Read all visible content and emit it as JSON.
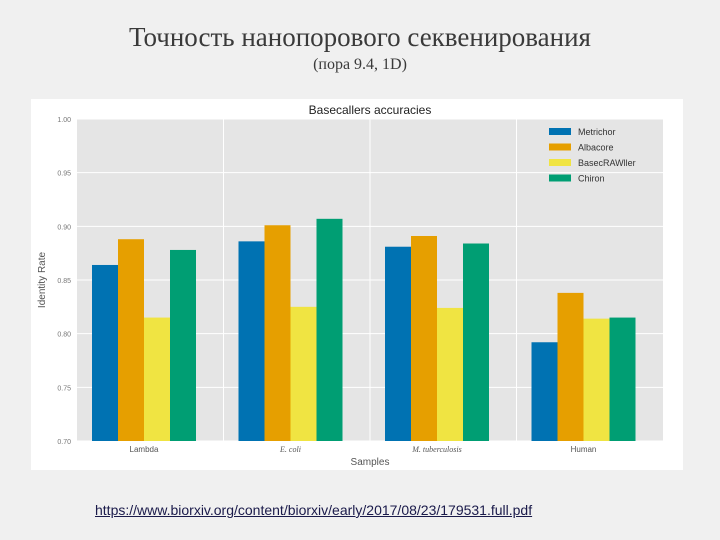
{
  "slide": {
    "title": "Точность нанопорового секвенирования",
    "subtitle": "(пора 9.4, 1D)",
    "source_link": "https://www.biorxiv.org/content/biorxiv/early/2017/08/23/179531.full.pdf"
  },
  "chart_data": {
    "type": "bar",
    "title": "Basecallers accuracies",
    "xlabel": "Samples",
    "ylabel": "Identity Rate",
    "categories": [
      "Lambda",
      "E. coli",
      "M. tuberculosis",
      "Human"
    ],
    "ylim": [
      0.7,
      1.0
    ],
    "yticks": [
      0.7,
      0.75,
      0.8,
      0.85,
      0.9,
      0.95,
      1.0
    ],
    "ytick_labels": [
      "0.70",
      "0.75",
      "0.80",
      "0.85",
      "0.90",
      "0.95",
      "1.00"
    ],
    "grid": true,
    "legend_position": "top-right",
    "series": [
      {
        "name": "Metrichor",
        "color": "#0072b2",
        "values": [
          0.864,
          0.886,
          0.881,
          0.792
        ]
      },
      {
        "name": "Albacore",
        "color": "#e69f00",
        "values": [
          0.888,
          0.901,
          0.891,
          0.838
        ]
      },
      {
        "name": "BasecRAWller",
        "color": "#f0e442",
        "values": [
          0.815,
          0.825,
          0.824,
          0.814
        ]
      },
      {
        "name": "Chiron",
        "color": "#009e73",
        "values": [
          0.878,
          0.907,
          0.884,
          0.815
        ]
      }
    ]
  }
}
